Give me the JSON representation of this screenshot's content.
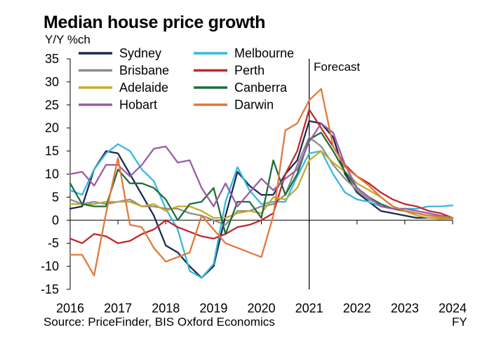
{
  "chart_data": {
    "type": "line",
    "title": "Median house price growth",
    "ylabel": "Y/Y %ch",
    "xlabel": "FY",
    "source": "Source: PriceFinder, BIS Oxford Economics",
    "annotation": "Forecast",
    "forecast_start": 2021.0,
    "ylim": [
      -15,
      35
    ],
    "xlim": [
      2016,
      2024
    ],
    "yticks": [
      35,
      30,
      25,
      20,
      15,
      10,
      5,
      0,
      -5,
      -10,
      -15
    ],
    "xticks": [
      "2016",
      "2017",
      "2018",
      "2019",
      "2020",
      "2021",
      "2022",
      "2023",
      "2024"
    ],
    "grid": false,
    "legend_position": "top",
    "x": [
      2016.0,
      2016.25,
      2016.5,
      2016.75,
      2017.0,
      2017.25,
      2017.5,
      2017.75,
      2018.0,
      2018.25,
      2018.5,
      2018.75,
      2019.0,
      2019.25,
      2019.5,
      2019.75,
      2020.0,
      2020.25,
      2020.5,
      2020.75,
      2021.0,
      2021.25,
      2021.5,
      2021.75,
      2022.0,
      2022.25,
      2022.5,
      2022.75,
      2023.0,
      2023.25,
      2023.5,
      2023.75,
      2024.0
    ],
    "series": [
      {
        "name": "Sydney",
        "color": "#1a2a52",
        "values": [
          2.5,
          3,
          11,
          15,
          14.5,
          10,
          5.5,
          1,
          -5.5,
          -7,
          -10,
          -12.5,
          -10,
          1,
          10.5,
          7.5,
          5.5,
          5.5,
          10,
          13,
          21.5,
          21,
          18,
          10,
          6,
          4,
          2,
          1.5,
          1,
          0.5,
          0.5,
          0.3,
          0.3
        ]
      },
      {
        "name": "Melbourne",
        "color": "#36b8e0",
        "values": [
          6.5,
          5.5,
          11,
          14.5,
          16.5,
          15,
          11,
          8.5,
          2.5,
          -2,
          -11,
          -12.5,
          -9.5,
          4,
          11.5,
          6.5,
          3.5,
          4,
          4,
          9.5,
          14.5,
          15,
          10,
          6,
          4.5,
          4,
          3,
          2.5,
          2.5,
          2.5,
          3,
          3,
          3.2
        ]
      },
      {
        "name": "Brisbane",
        "color": "#8c8c8c",
        "values": [
          4.5,
          3.5,
          4,
          3.5,
          4,
          4.5,
          3,
          3,
          2.5,
          2.5,
          1.5,
          1,
          0,
          -1,
          2,
          2,
          3,
          3.5,
          5.5,
          12,
          18,
          16,
          12,
          9,
          6.5,
          4.5,
          3.5,
          2.5,
          2,
          1.5,
          1,
          0.8,
          0.5
        ]
      },
      {
        "name": "Perth",
        "color": "#c1272d",
        "values": [
          -4,
          -5,
          -3,
          -3.5,
          -5,
          -4.5,
          -3,
          -2,
          0,
          -1.5,
          -2.5,
          -3.5,
          -4,
          -3,
          -1.5,
          -1,
          0,
          1.5,
          10,
          15,
          24,
          20,
          16,
          12,
          9.5,
          8,
          6,
          4.5,
          3.5,
          3,
          2,
          1.5,
          0.5
        ]
      },
      {
        "name": "Adelaide",
        "color": "#c8aa2a",
        "values": [
          3.5,
          3.5,
          3.5,
          4,
          4,
          4,
          3,
          3.5,
          2,
          3,
          3,
          2,
          0.5,
          0.5,
          1.5,
          2,
          1.5,
          5,
          4.5,
          7,
          13,
          15,
          12.5,
          10.5,
          8,
          6.5,
          5,
          3,
          2,
          1,
          0.5,
          0.3,
          0.2
        ]
      },
      {
        "name": "Canberra",
        "color": "#1d6e3b",
        "values": [
          8,
          3.5,
          3,
          3,
          11,
          8,
          8,
          7,
          4.5,
          0,
          3.5,
          4,
          7,
          -3,
          4,
          4,
          0.5,
          13,
          5.5,
          10,
          17.5,
          19,
          15,
          10.5,
          7,
          5,
          3.5,
          2.5,
          2,
          1.5,
          1,
          0.7,
          0.5
        ]
      },
      {
        "name": "Hobart",
        "color": "#9b5ca6",
        "values": [
          10,
          10.5,
          7.5,
          12,
          12,
          9.5,
          12,
          15.5,
          16,
          12.5,
          13,
          7,
          3,
          8,
          3,
          6,
          9,
          6.5,
          9,
          11,
          17,
          21,
          19,
          12,
          7,
          5,
          3,
          2.5,
          2.5,
          2,
          1.5,
          1,
          0.5
        ]
      },
      {
        "name": "Darwin",
        "color": "#e07a3a",
        "values": [
          -7.5,
          -7.5,
          -12,
          1.5,
          13.5,
          -1,
          -1.5,
          -6,
          -9,
          -8,
          -7,
          1,
          -2,
          -5,
          -6,
          -7,
          -8,
          1,
          19.5,
          21,
          26,
          28.5,
          16,
          11.5,
          9.5,
          7.5,
          5,
          3,
          2,
          1.5,
          1,
          0.7,
          0.5
        ]
      }
    ]
  }
}
